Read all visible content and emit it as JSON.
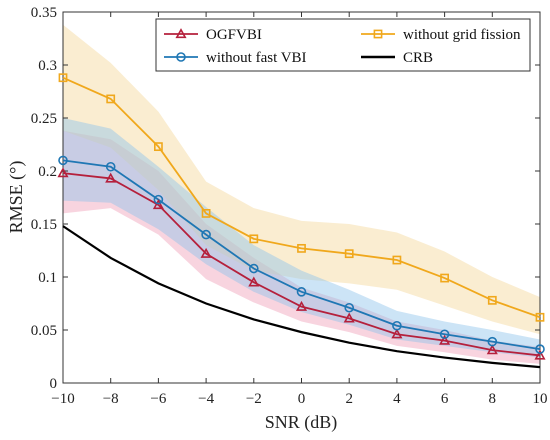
{
  "chart_data": {
    "type": "line",
    "xlabel": "SNR (dB)",
    "ylabel": "RMSE (°)",
    "xlim": [
      -10,
      10
    ],
    "ylim": [
      0,
      0.35
    ],
    "x": [
      -10,
      -8,
      -6,
      -4,
      -2,
      0,
      2,
      4,
      6,
      8,
      10
    ],
    "x_ticks": [
      "−10",
      "−8",
      "−6",
      "−4",
      "−2",
      "0",
      "2",
      "4",
      "6",
      "8",
      "10"
    ],
    "y_ticks": [
      "0",
      "0.05",
      "0.1",
      "0.15",
      "0.2",
      "0.25",
      "0.3",
      "0.35"
    ],
    "y_tick_values": [
      0,
      0.05,
      0.1,
      0.15,
      0.2,
      0.25,
      0.3,
      0.35
    ],
    "grid": false,
    "legend": {
      "position": "top-right",
      "columns": 2
    },
    "series": [
      {
        "name": "OGFVBI",
        "color": "#b5203c",
        "marker": "triangle",
        "values": [
          0.198,
          0.193,
          0.168,
          0.122,
          0.095,
          0.072,
          0.061,
          0.046,
          0.04,
          0.031,
          0.026
        ],
        "band_lower": [
          0.16,
          0.165,
          0.14,
          0.098,
          0.076,
          0.058,
          0.048,
          0.035,
          0.029,
          0.022,
          0.018
        ],
        "band_upper": [
          0.238,
          0.23,
          0.2,
          0.15,
          0.118,
          0.09,
          0.076,
          0.058,
          0.05,
          0.04,
          0.034
        ],
        "band_color": "#f0a0b8"
      },
      {
        "name": "without grid fission",
        "color": "#f0a81c",
        "marker": "square",
        "values": [
          0.288,
          0.268,
          0.223,
          0.16,
          0.136,
          0.127,
          0.122,
          0.116,
          0.099,
          0.078,
          0.062
        ],
        "band_lower": [
          0.238,
          0.222,
          0.182,
          0.13,
          0.106,
          0.098,
          0.094,
          0.088,
          0.073,
          0.058,
          0.046
        ],
        "band_upper": [
          0.338,
          0.302,
          0.256,
          0.19,
          0.165,
          0.153,
          0.15,
          0.142,
          0.124,
          0.1,
          0.081
        ],
        "band_color": "#f5d89a"
      },
      {
        "name": "without fast VBI",
        "color": "#1f77b4",
        "marker": "circle",
        "values": [
          0.21,
          0.204,
          0.173,
          0.14,
          0.108,
          0.086,
          0.071,
          0.054,
          0.046,
          0.039,
          0.032
        ],
        "band_lower": [
          0.172,
          0.17,
          0.145,
          0.112,
          0.086,
          0.067,
          0.055,
          0.041,
          0.035,
          0.029,
          0.024
        ],
        "band_upper": [
          0.25,
          0.24,
          0.204,
          0.166,
          0.13,
          0.106,
          0.088,
          0.068,
          0.058,
          0.05,
          0.041
        ],
        "band_color": "#8fc4ea"
      },
      {
        "name": "CRB",
        "color": "#000000",
        "marker": "none",
        "values": [
          0.148,
          0.118,
          0.094,
          0.075,
          0.06,
          0.048,
          0.038,
          0.03,
          0.024,
          0.019,
          0.015
        ]
      }
    ]
  }
}
